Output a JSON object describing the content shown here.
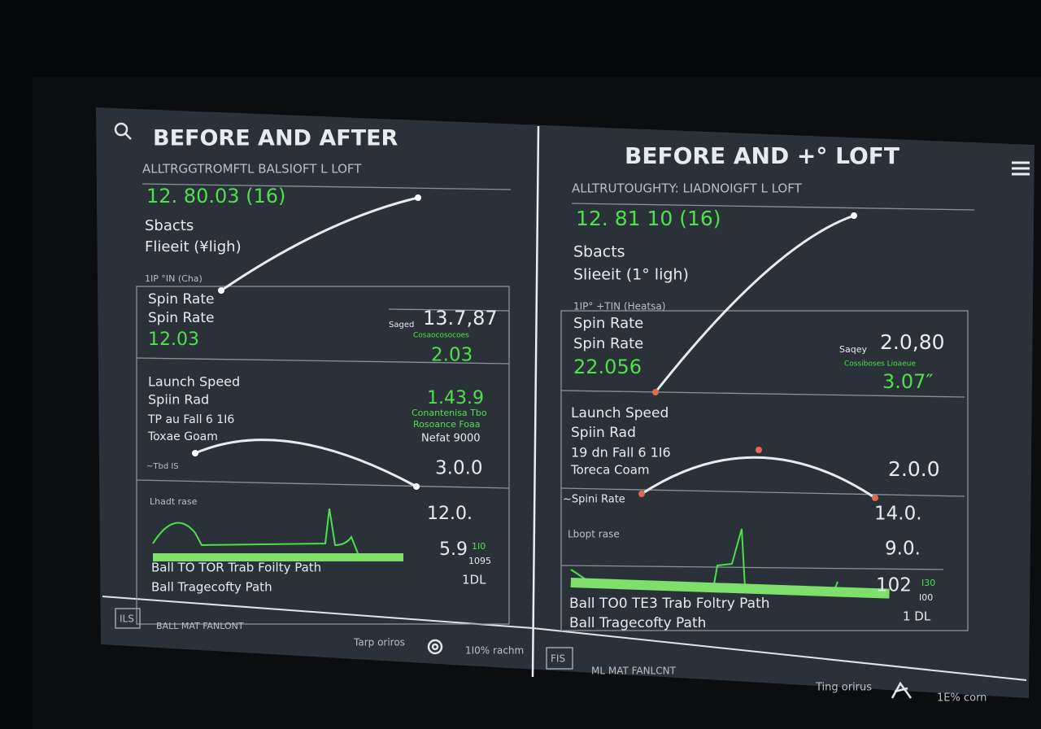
{
  "panels": [
    {
      "texts": [
        "BEFORE AND AFTER",
        "ALLTRGGTROMFTL BALSIOFT L LOFT",
        "12. 80.03 (16)",
        "Sbacts",
        "Flieeit (¥ligh)",
        "1IP °IN (Cha)",
        "Spin Rate",
        "Spin Rate",
        "12.03",
        "Saged",
        "13.7,87",
        "Cosaocosocoes",
        "2.03",
        "Launch Speed",
        "Spiin Rad",
        "TP au Fall 6 1I6",
        "Toxae Goam",
        "1.43.9",
        "Conantenisa Tbo",
        "Rosoance Foaa",
        "Nefat 9000",
        "3.0.0",
        "~Tbd IS",
        "Lhadt rase",
        "12.0.",
        "5.9",
        "1I0",
        "1095",
        "1DL",
        "Ball TO TOR Trab Foilty Path",
        "Ball Tragecofty Path",
        "ILS",
        "BALL MAT FANLONT",
        "Tarp oriros",
        "1I0% rachm"
      ]
    },
    {
      "texts": [
        "BEFORE AND +° LOFT",
        "ALLTRUTOUGHTY: LIADNOIGFT L LOFT",
        "12. 81 10 (16)",
        "Sbacts",
        "Slieeit (1° ligh)",
        "1IP° +TIN (Heatsa)",
        "Spin Rate",
        "Spin Rate",
        "22.056",
        "Saqey",
        "2.0,80",
        "Cossiboses Lioaeue",
        "3.07″",
        "Launch Speed",
        "Spiin Rad",
        "19 dn Fall 6 1I6",
        "Toreca Coam",
        "2.0.0",
        "~Spini Rate",
        "Lbopt rase",
        "14.0.",
        "9.0.",
        "102",
        "I30",
        "I00",
        "1 DL",
        "Ball TO0 TE3 Trab Foltry Path",
        "Ball Tragecofty Path",
        "FIS",
        "ML MAT FANLCNT",
        "Ting orirus",
        "1E% corn"
      ]
    }
  ]
}
